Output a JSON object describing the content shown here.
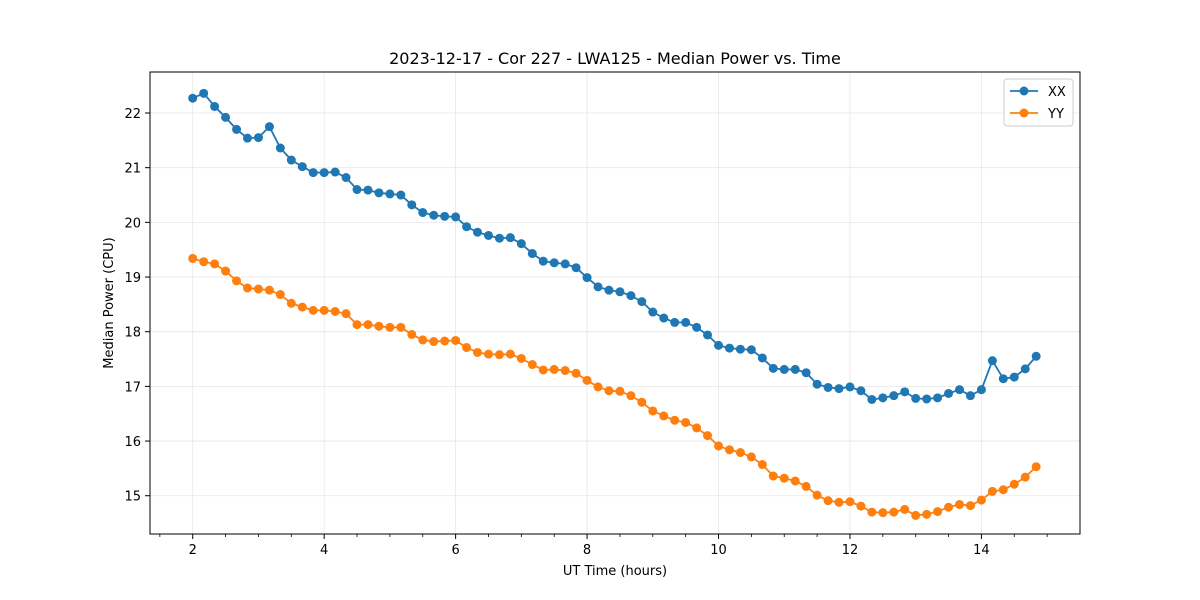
{
  "chart_data": {
    "type": "line",
    "title": "2023-12-17 - Cor 227 - LWA125 - Median Power vs. Time",
    "xlabel": "UT Time (hours)",
    "ylabel": "Median Power (CPU)",
    "xlim": [
      1.35,
      15.5
    ],
    "ylim": [
      14.3,
      22.75
    ],
    "xticks": [
      2,
      4,
      6,
      8,
      10,
      12,
      14
    ],
    "xticklabels": [
      "2",
      "4",
      "6",
      "8",
      "10",
      "12",
      "14"
    ],
    "xminorticks": [
      1.5,
      2.5,
      3,
      3.5,
      4.5,
      5,
      5.5,
      6.5,
      7,
      7.5,
      8.5,
      9,
      9.5,
      10.5,
      11,
      11.5,
      12.5,
      13,
      13.5,
      14.5,
      15
    ],
    "yticks": [
      15,
      16,
      17,
      18,
      19,
      20,
      21,
      22
    ],
    "yticklabels": [
      "15",
      "16",
      "17",
      "18",
      "19",
      "20",
      "21",
      "22"
    ],
    "grid": true,
    "legend_position": "top-right",
    "x": [
      2.0,
      2.167,
      2.333,
      2.5,
      2.667,
      2.833,
      3.0,
      3.167,
      3.333,
      3.5,
      3.667,
      3.833,
      4.0,
      4.167,
      4.333,
      4.5,
      4.667,
      4.833,
      5.0,
      5.167,
      5.333,
      5.5,
      5.667,
      5.833,
      6.0,
      6.167,
      6.333,
      6.5,
      6.667,
      6.833,
      7.0,
      7.167,
      7.333,
      7.5,
      7.667,
      7.833,
      8.0,
      8.167,
      8.333,
      8.5,
      8.667,
      8.833,
      9.0,
      9.167,
      9.333,
      9.5,
      9.667,
      9.833,
      10.0,
      10.167,
      10.333,
      10.5,
      10.667,
      10.833,
      11.0,
      11.167,
      11.333,
      11.5,
      11.667,
      11.833,
      12.0,
      12.167,
      12.333,
      12.5,
      12.667,
      12.833,
      13.0,
      13.167,
      13.333,
      13.5,
      13.667,
      13.833,
      14.0,
      14.167,
      14.333,
      14.5,
      14.667,
      14.833
    ],
    "series": [
      {
        "name": "XX",
        "color": "#1f77b4",
        "values": [
          22.27,
          22.36,
          22.12,
          21.92,
          21.7,
          21.54,
          21.55,
          21.75,
          21.36,
          21.14,
          21.02,
          20.91,
          20.91,
          20.92,
          20.82,
          20.6,
          20.59,
          20.54,
          20.52,
          20.5,
          20.32,
          20.18,
          20.13,
          20.11,
          20.1,
          19.92,
          19.82,
          19.76,
          19.71,
          19.72,
          19.61,
          19.43,
          19.29,
          19.26,
          19.24,
          19.17,
          18.99,
          18.82,
          18.76,
          18.73,
          18.66,
          18.55,
          18.36,
          18.25,
          18.17,
          18.17,
          18.08,
          17.94,
          17.75,
          17.7,
          17.68,
          17.67,
          17.52,
          17.33,
          17.31,
          17.31,
          17.25,
          17.04,
          16.98,
          16.96,
          16.99,
          16.92,
          16.76,
          16.79,
          16.83,
          16.9,
          16.78,
          16.77,
          16.79,
          16.87,
          16.94,
          16.83,
          16.94,
          17.47,
          17.14,
          17.17,
          17.32,
          17.55
        ]
      },
      {
        "name": "YY",
        "color": "#ff7f0e",
        "values": [
          19.34,
          19.28,
          19.24,
          19.11,
          18.93,
          18.8,
          18.78,
          18.76,
          18.68,
          18.52,
          18.45,
          18.39,
          18.39,
          18.37,
          18.33,
          18.13,
          18.13,
          18.1,
          18.08,
          18.08,
          17.95,
          17.85,
          17.82,
          17.83,
          17.84,
          17.71,
          17.62,
          17.59,
          17.58,
          17.59,
          17.51,
          17.4,
          17.3,
          17.31,
          17.29,
          17.24,
          17.11,
          16.99,
          16.92,
          16.91,
          16.83,
          16.71,
          16.55,
          16.46,
          16.38,
          16.34,
          16.24,
          16.1,
          15.91,
          15.84,
          15.79,
          15.71,
          15.57,
          15.36,
          15.32,
          15.27,
          15.17,
          15.01,
          14.91,
          14.88,
          14.89,
          14.81,
          14.7,
          14.69,
          14.7,
          14.75,
          14.64,
          14.66,
          14.71,
          14.79,
          14.84,
          14.82,
          14.92,
          15.08,
          15.11,
          15.21,
          15.34,
          15.53
        ]
      }
    ]
  }
}
